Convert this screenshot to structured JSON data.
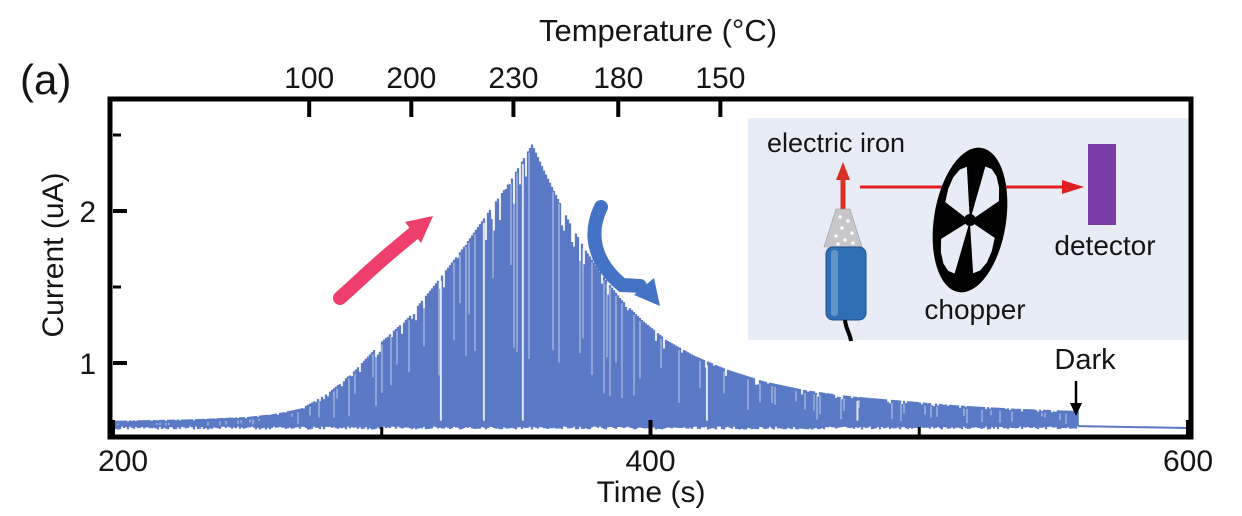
{
  "figure": {
    "panel_label": "(a)",
    "background": "#ffffff"
  },
  "axes": {
    "top": {
      "title": "Temperature (°C)",
      "ticks": [
        {
          "label": "100",
          "time_s": 273
        },
        {
          "label": "200",
          "time_s": 311
        },
        {
          "label": "230",
          "time_s": 349
        },
        {
          "label": "180",
          "time_s": 388
        },
        {
          "label": "150",
          "time_s": 426
        }
      ]
    },
    "bottom": {
      "title": "Time (s)",
      "ticks": [
        200,
        400,
        600
      ],
      "minor_ticks": [
        300,
        500
      ]
    },
    "left": {
      "title": "Current (uA)",
      "ticks": [
        1,
        2
      ],
      "minor_ticks": [
        1.5,
        2.5
      ]
    }
  },
  "annotations": {
    "dark_label": "Dark",
    "dark_time_s": 559,
    "rise_arrow_color": "#ee3e6b",
    "decay_arrow_color": "#4472c4"
  },
  "inset": {
    "background": "#e8ecf7",
    "labels": {
      "iron": "electric iron",
      "chopper": "chopper",
      "detector": "detector"
    },
    "colors": {
      "beam_arrow": "#e02020",
      "iron_tip_arrow": "#d93025",
      "iron_cone": "#c6c6cb",
      "iron_handle": "#2f6fb5",
      "wheel": "#000000",
      "detector": "#7a3ba6"
    }
  },
  "chart_data": {
    "type": "line",
    "title": "",
    "xlabel": "Time (s)",
    "ylabel": "Current (uA)",
    "xlim": [
      198,
      602
    ],
    "ylim": [
      0.49,
      2.74
    ],
    "x_ticks": [
      200,
      400,
      600
    ],
    "y_ticks": [
      1,
      2
    ],
    "grid": false,
    "series_color": "#5b79c4",
    "signal": {
      "description": "chopped photocurrent envelope vs time",
      "baseline_uA": 0.575,
      "peak": {
        "time_s": 356,
        "current_uA": 2.44
      },
      "dark_onset_s": 559,
      "dark_level_uA": 0.58,
      "envelope": [
        [
          200,
          0.62
        ],
        [
          230,
          0.63
        ],
        [
          250,
          0.645
        ],
        [
          260,
          0.665
        ],
        [
          270,
          0.7
        ],
        [
          280,
          0.8
        ],
        [
          290,
          0.95
        ],
        [
          300,
          1.14
        ],
        [
          310,
          1.3
        ],
        [
          320,
          1.52
        ],
        [
          330,
          1.75
        ],
        [
          340,
          2.0
        ],
        [
          348,
          2.2
        ],
        [
          356,
          2.44
        ],
        [
          360,
          2.28
        ],
        [
          365,
          2.1
        ],
        [
          370,
          1.92
        ],
        [
          376,
          1.74
        ],
        [
          382,
          1.58
        ],
        [
          389,
          1.42
        ],
        [
          397,
          1.28
        ],
        [
          406,
          1.15
        ],
        [
          416,
          1.05
        ],
        [
          428,
          0.96
        ],
        [
          442,
          0.88
        ],
        [
          458,
          0.82
        ],
        [
          475,
          0.78
        ],
        [
          495,
          0.75
        ],
        [
          515,
          0.72
        ],
        [
          535,
          0.7
        ],
        [
          550,
          0.69
        ],
        [
          558,
          0.685
        ]
      ],
      "dark_tail": [
        [
          559,
          0.585
        ],
        [
          580,
          0.578
        ],
        [
          600,
          0.572
        ]
      ],
      "light_streak_times_s": [
        322,
        338,
        352.5,
        421,
        477
      ]
    }
  }
}
